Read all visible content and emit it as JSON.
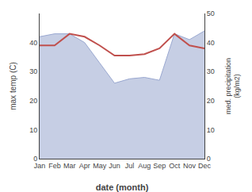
{
  "chart_data": {
    "type": "line",
    "xlabel": "date (month)",
    "ylabel": "max temp (C)",
    "y2label": "med. precipitation\n(kg/m2)",
    "categories": [
      "Jan",
      "Feb",
      "Mar",
      "Apr",
      "May",
      "Jun",
      "Jul",
      "Aug",
      "Sep",
      "Oct",
      "Nov",
      "Dec"
    ],
    "series": [
      {
        "type": "area",
        "color": "#9aa8d0",
        "values": [
          42,
          43,
          43,
          40,
          33,
          26,
          27.5,
          28,
          27,
          43,
          41,
          44
        ]
      },
      {
        "type": "line",
        "color": "#c0504d",
        "values": [
          39,
          39,
          43,
          42,
          39,
          35.5,
          35.5,
          36,
          38,
          43,
          39,
          38
        ]
      }
    ],
    "ylim": [
      0,
      50
    ],
    "yticks": [
      0,
      10,
      20,
      30,
      40
    ],
    "y2lim": [
      0,
      50
    ],
    "y2ticks": [
      0,
      10,
      20,
      30,
      40,
      50
    ],
    "grid": false
  }
}
